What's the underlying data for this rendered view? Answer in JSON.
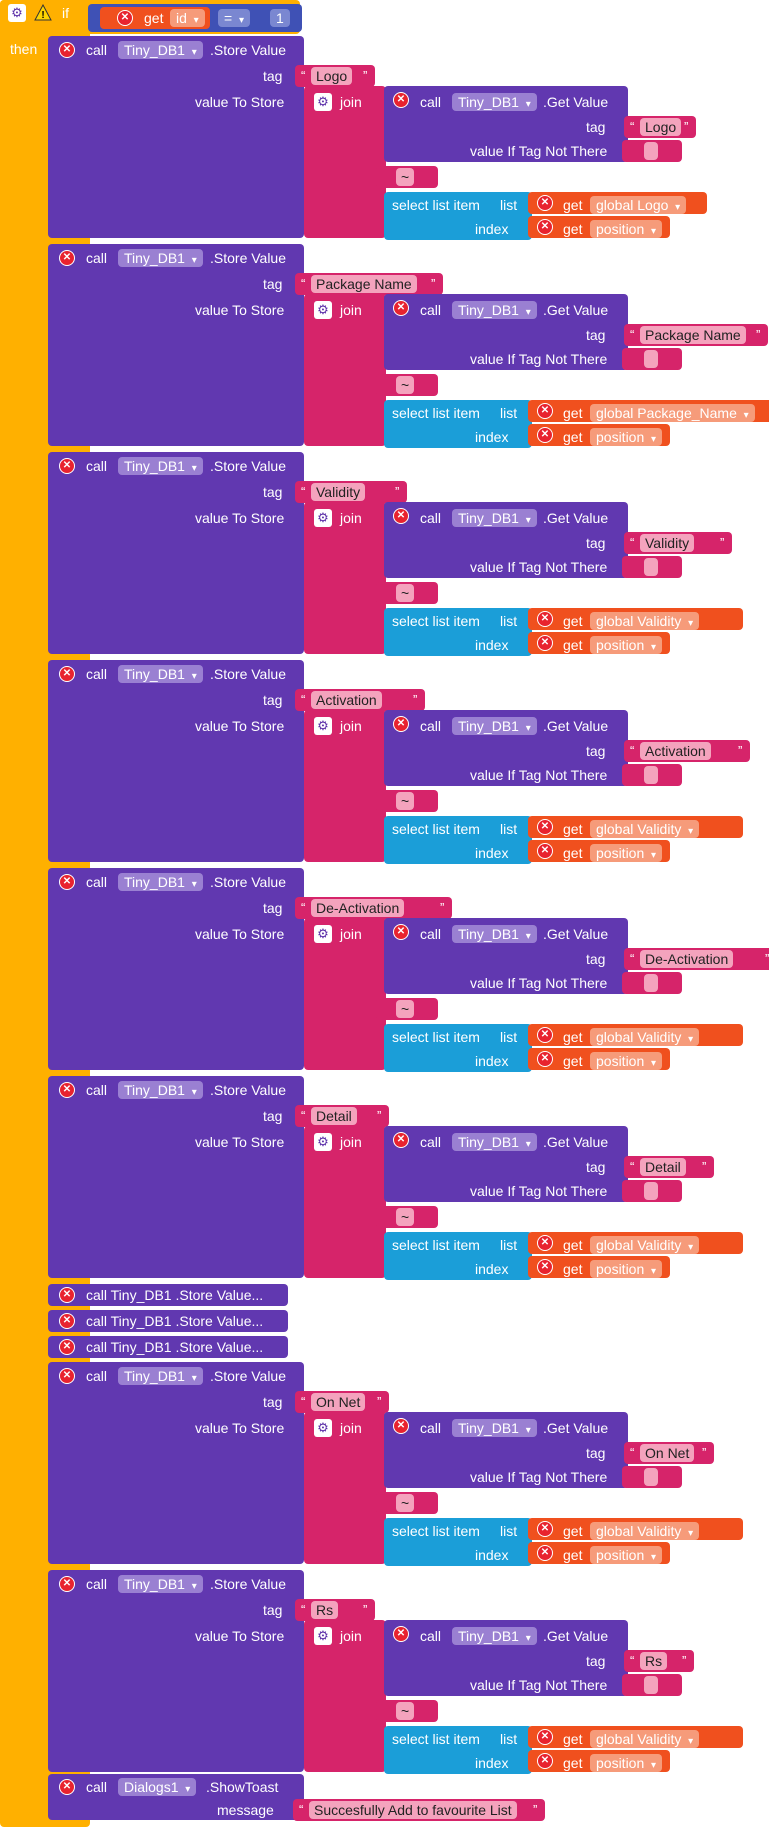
{
  "palette": {
    "control": "#ffb000",
    "procedure": "#6138b0",
    "text": "#d6246a",
    "list": "#1b9ed8",
    "variable": "#f0501e",
    "math": "#3f51b5",
    "string_field": "#f4a3bd",
    "error": "#e8232f"
  },
  "if_block": {
    "if_label": "if",
    "then_label": "then",
    "condition": {
      "get_label": "get",
      "var": "id",
      "op": "=",
      "value": "1"
    }
  },
  "labels": {
    "call": "call",
    "store_value": ".Store Value",
    "get_value": ".Get Value",
    "tag": "tag",
    "value_to_store": "value To Store",
    "join": "join",
    "value_if_not_there": "value If Tag Not There",
    "select_list_item": "select list item",
    "list": "list",
    "index": "index",
    "get": "get",
    "position": "position",
    "component": "Tiny_DB1",
    "separator": "~"
  },
  "store_blocks": [
    {
      "tag": "Logo",
      "list_var": "global Logo"
    },
    {
      "tag": "Package Name",
      "list_var": "global Package_Name"
    },
    {
      "tag": "Validity",
      "list_var": "global Validity"
    },
    {
      "tag": "Activation",
      "list_var": "global Validity"
    },
    {
      "tag": "De-Activation",
      "list_var": "global Validity"
    },
    {
      "tag": "Detail",
      "list_var": "global Validity"
    },
    {
      "tag": "On Net",
      "list_var": "global Validity"
    },
    {
      "tag": "Rs",
      "list_var": "global Validity"
    }
  ],
  "collapsed_blocks": [
    {
      "label": "call  Tiny_DB1 .Store Value..."
    },
    {
      "label": "call  Tiny_DB1 .Store Value..."
    },
    {
      "label": "call  Tiny_DB1 .Store Value..."
    }
  ],
  "toast": {
    "component": "Dialogs1",
    "method": ".ShowToast",
    "message_label": "message",
    "message": "Succesfully Add to favourite List"
  }
}
